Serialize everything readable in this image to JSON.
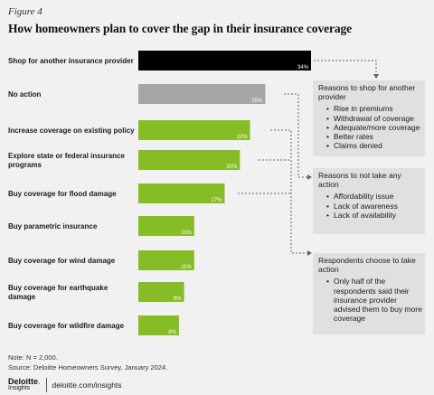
{
  "figure_label": "Figure 4",
  "title": "How homeowners plan to cover the gap in their insurance coverage",
  "colors": {
    "top_bar": "#000000",
    "no_action_bar": "#a6a6a6",
    "other_bars": "#86bc25",
    "connector": "#666666",
    "box_bg": "#e0e0e0",
    "page_bg": "#f1f1f1"
  },
  "chart_data": {
    "type": "bar",
    "orientation": "horizontal",
    "categories": [
      "Shop for another insurance provider",
      "No action",
      "Increase coverage on existing policy",
      "Explore state or federal insurance programs",
      "Buy coverage for flood damage",
      "Buy parametric insurance",
      "Buy coverage for wind damage",
      "Buy coverage for earthquake damage",
      "Buy coverage for wildfire damage"
    ],
    "values": [
      34,
      25,
      22,
      20,
      17,
      11,
      11,
      9,
      8
    ],
    "value_labels": [
      "34%",
      "25%",
      "22%",
      "20%",
      "17%",
      "11%",
      "11%",
      "9%",
      "8%"
    ],
    "bar_colors": [
      "#000000",
      "#a6a6a6",
      "#86bc25",
      "#86bc25",
      "#86bc25",
      "#86bc25",
      "#86bc25",
      "#86bc25",
      "#86bc25"
    ],
    "xlim": [
      0,
      34
    ],
    "grid": false
  },
  "callouts": [
    {
      "heading": "Reasons to shop for another provider",
      "items": [
        "Rise in premiums",
        "Withdrawal of coverage",
        "Adequate/more coverage",
        "Better rates",
        "Claims denied"
      ]
    },
    {
      "heading": "Reasons to not take any action",
      "items": [
        "Affordability issue",
        "Lack of awareness",
        "Lack of availability"
      ]
    },
    {
      "heading": "Respondents choose to take action",
      "items": [
        "Only half of the respondents said their insurance provider advised them to buy more coverage"
      ]
    }
  ],
  "note": "Note: N = 2,000.",
  "source": "Source: Deloitte Homeowners Survey, January 2024.",
  "footer": {
    "brand": "Deloitte",
    "brand_dot": ".",
    "brand_sub": "Insights",
    "url": "deloitte.com/insights"
  }
}
